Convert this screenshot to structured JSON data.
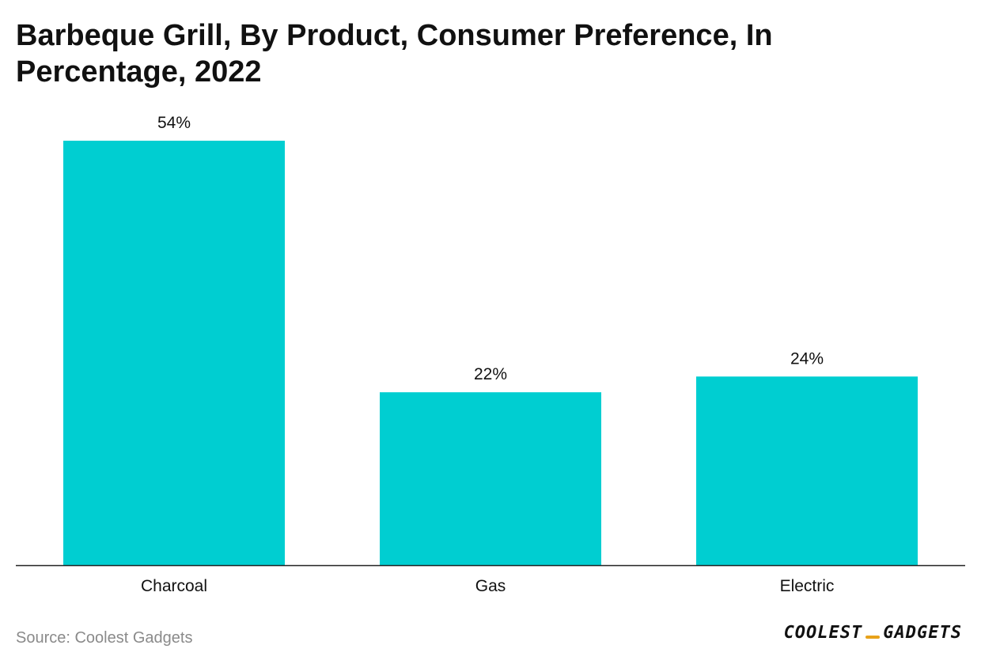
{
  "chart_data": {
    "type": "bar",
    "title": "Barbeque Grill, By Product, Consumer Preference, In Percentage, 2022",
    "categories": [
      "Charcoal",
      "Gas",
      "Electric"
    ],
    "values": [
      54,
      22,
      24
    ],
    "value_labels": [
      "54%",
      "22%",
      "24%"
    ],
    "xlabel": "",
    "ylabel": "",
    "ylim": [
      0,
      54
    ],
    "grid": false,
    "bar_color": "#00CED1"
  },
  "footer": {
    "source": "Source: Coolest Gadgets",
    "logo_left": "COOLEST",
    "logo_right": "GADGETS"
  }
}
